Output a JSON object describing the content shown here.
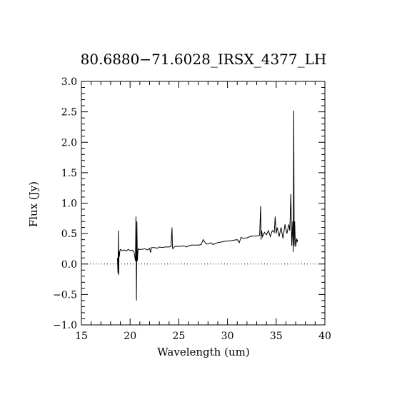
{
  "chart_data": {
    "type": "line",
    "title": "80.6880−71.6028_IRSX_4377_LH",
    "xlabel": "Wavelength (um)",
    "ylabel": "Flux (Jy)",
    "xlim": [
      15,
      40
    ],
    "ylim": [
      -1.0,
      3.0
    ],
    "x_ticks": [
      15,
      20,
      25,
      30,
      35,
      40
    ],
    "x_tick_labels": [
      "15",
      "20",
      "25",
      "30",
      "35",
      "40"
    ],
    "y_ticks": [
      -1.0,
      -0.5,
      0.0,
      0.5,
      1.0,
      1.5,
      2.0,
      2.5,
      3.0
    ],
    "y_tick_labels": [
      "−1.0",
      "−0.5",
      "0.0",
      "0.5",
      "1.0",
      "1.5",
      "2.0",
      "2.5",
      "3.0"
    ],
    "zero_line": true,
    "grid": false,
    "series": [
      {
        "color": "#000000",
        "x": [
          18.7,
          18.75,
          18.8,
          18.83,
          18.86,
          18.9,
          18.95,
          19.0,
          19.2,
          19.4,
          19.6,
          19.8,
          20.0,
          20.2,
          20.4,
          20.5,
          20.55,
          20.6,
          20.65,
          20.7,
          20.75,
          20.8,
          20.85,
          20.9,
          21.2,
          21.5,
          21.8,
          22.0,
          22.1,
          22.2,
          22.5,
          22.8,
          23.0,
          23.3,
          23.6,
          24.0,
          24.2,
          24.3,
          24.35,
          24.4,
          24.6,
          25.0,
          25.3,
          25.5,
          25.8,
          26.0,
          26.3,
          26.6,
          27.0,
          27.3,
          27.5,
          27.8,
          28.0,
          28.3,
          28.5,
          28.8,
          29.0,
          29.3,
          29.6,
          30.0,
          30.3,
          30.6,
          31.0,
          31.2,
          31.4,
          31.6,
          32.0,
          32.3,
          32.6,
          33.0,
          33.3,
          33.4,
          33.45,
          33.5,
          33.6,
          33.8,
          34.0,
          34.2,
          34.4,
          34.6,
          34.8,
          34.9,
          35.0,
          35.1,
          35.3,
          35.5,
          35.7,
          35.9,
          36.1,
          36.3,
          36.4,
          36.5,
          36.6,
          36.7,
          36.75,
          36.8,
          36.85,
          36.9,
          36.95,
          37.0,
          37.1,
          37.15,
          37.2
        ],
        "values": [
          0.1,
          -0.15,
          0.55,
          -0.18,
          0.2,
          0.12,
          0.22,
          0.24,
          0.22,
          0.23,
          0.21,
          0.24,
          0.22,
          0.23,
          0.2,
          0.1,
          0.05,
          0.78,
          -0.6,
          0.7,
          0.05,
          0.2,
          0.25,
          0.24,
          0.24,
          0.25,
          0.23,
          0.26,
          0.19,
          0.27,
          0.27,
          0.26,
          0.28,
          0.27,
          0.28,
          0.28,
          0.29,
          0.6,
          0.28,
          0.25,
          0.29,
          0.29,
          0.29,
          0.3,
          0.28,
          0.3,
          0.31,
          0.31,
          0.31,
          0.32,
          0.4,
          0.33,
          0.33,
          0.35,
          0.32,
          0.34,
          0.35,
          0.36,
          0.37,
          0.38,
          0.38,
          0.39,
          0.4,
          0.35,
          0.44,
          0.42,
          0.43,
          0.45,
          0.46,
          0.46,
          0.47,
          0.95,
          0.4,
          0.55,
          0.45,
          0.52,
          0.48,
          0.55,
          0.45,
          0.55,
          0.52,
          0.78,
          0.5,
          0.6,
          0.45,
          0.6,
          0.42,
          0.65,
          0.5,
          0.65,
          0.55,
          1.15,
          0.3,
          0.7,
          0.2,
          2.52,
          0.3,
          0.7,
          0.4,
          0.28,
          0.42,
          0.36,
          0.4
        ]
      }
    ]
  }
}
